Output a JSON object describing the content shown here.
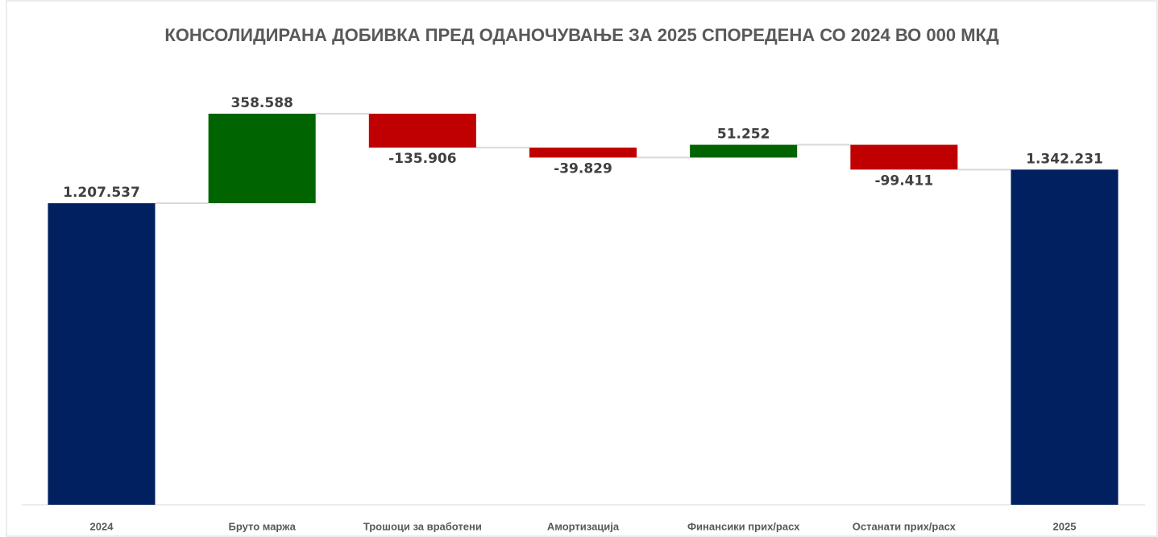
{
  "chart_data": {
    "type": "waterfall",
    "title": "КОНСОЛИДИРАНА ДОБИВКА ПРЕД ОДАНОЧУВАЊЕ ЗА 2025 СПОРЕДЕНА СО 2024 ВО 000 МКД",
    "categories": [
      "2024",
      "Бруто маржа",
      "Трошоци за вработени",
      "Амортизација",
      "Финансики прих/расх",
      "Останати прих/расх",
      "2025"
    ],
    "values": [
      1207537,
      358588,
      -135906,
      -39829,
      51252,
      -99411,
      1342231
    ],
    "value_labels": [
      "1.207.537",
      "358.588",
      "-135.906",
      "-39.829",
      "51.252",
      "-99.411",
      "1.342.231"
    ],
    "total_indices": [
      0,
      6
    ],
    "total_color": "#002060",
    "increase_color": "#006400",
    "decrease_color": "#c00000"
  }
}
